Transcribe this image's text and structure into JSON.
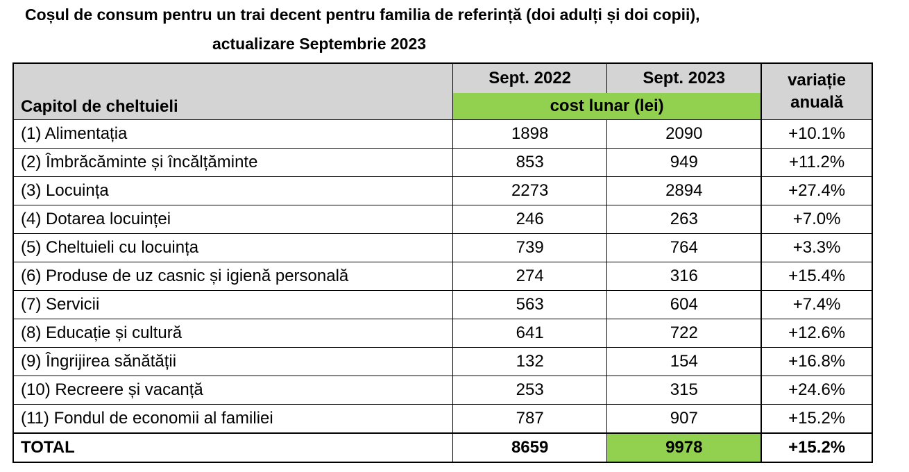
{
  "header": {
    "title": [
      "Coșul de consum pentru un trai decent pentru familia de referință (doi adulți și doi copii),",
      "actualizare Septembrie 2023"
    ]
  },
  "table": {
    "columns": [
      "Capitol de cheltuieli",
      "Sept. 2022",
      "Sept. 2023",
      "variație anuală"
    ],
    "unit": "cost lunar (lei)",
    "rows": [
      [
        "(1) Alimentația",
        1898,
        2090,
        "+10.1%"
      ],
      [
        "(2) Îmbrăcăminte și încălțăminte",
        853,
        949,
        "+11.2%"
      ],
      [
        "(3) Locuința",
        2273,
        2894,
        "+27.4%"
      ],
      [
        "(4) Dotarea locuinței",
        246,
        263,
        "+7.0%"
      ],
      [
        "(5) Cheltuieli cu locuința",
        739,
        764,
        "+3.3%"
      ],
      [
        "(6) Produse de uz casnic și igienă personală",
        274,
        316,
        "+15.4%"
      ],
      [
        "(7) Servicii",
        563,
        604,
        "+7.4%"
      ],
      [
        "(8) Educație și cultură",
        641,
        722,
        "+12.6%"
      ],
      [
        "(9) Îngrijirea sănătății",
        132,
        154,
        "+16.8%"
      ],
      [
        "(10) Recreere și vacanță",
        253,
        315,
        "+24.6%"
      ],
      [
        "(11) Fondul de economii al familiei",
        787,
        907,
        "+15.2%"
      ]
    ],
    "total": [
      "TOTAL",
      8659,
      9978,
      "+15.2%"
    ]
  }
}
